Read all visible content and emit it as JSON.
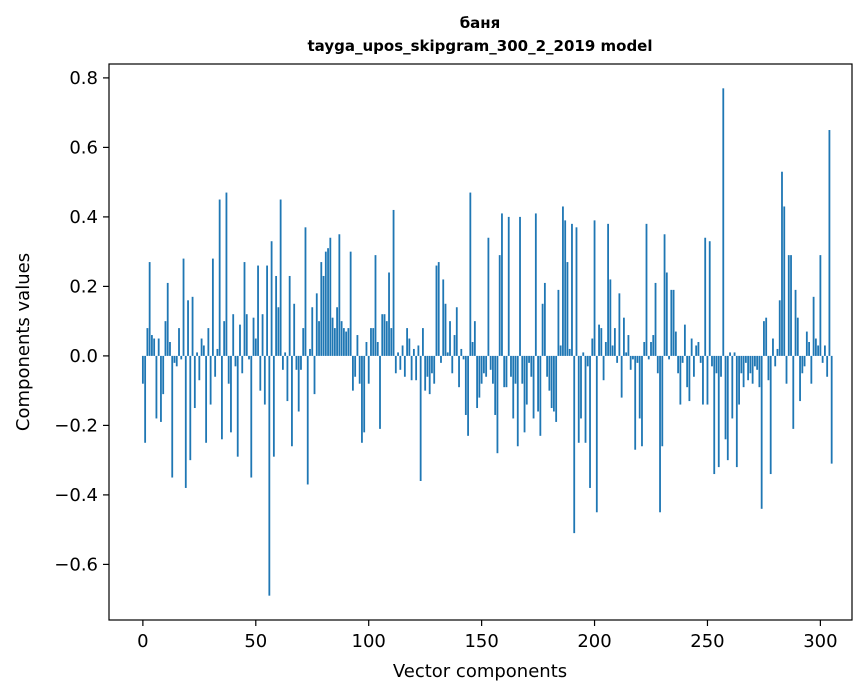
{
  "chart_data": {
    "type": "bar",
    "title": "баня",
    "subtitle": "tayga_upos_skipgram_300_2_2019 model",
    "xlabel": "Vector components",
    "ylabel": "Components values",
    "xlim": [
      -15,
      314
    ],
    "ylim": [
      -0.76,
      0.84
    ],
    "xticks": [
      0,
      50,
      100,
      150,
      200,
      250,
      300
    ],
    "xtick_labels": [
      "0",
      "50",
      "100",
      "150",
      "200",
      "250",
      "300"
    ],
    "yticks": [
      -0.6,
      -0.4,
      -0.2,
      0.0,
      0.2,
      0.4,
      0.6,
      0.8
    ],
    "ytick_labels": [
      "−0.6",
      "−0.4",
      "−0.2",
      "0.0",
      "0.2",
      "0.4",
      "0.6",
      "0.8"
    ],
    "bar_color": "#1f77b4",
    "values": [
      -0.08,
      -0.25,
      0.08,
      0.27,
      0.06,
      0.05,
      -0.18,
      0.05,
      -0.19,
      -0.11,
      0.1,
      0.21,
      0.04,
      -0.35,
      -0.02,
      -0.03,
      0.08,
      -0.01,
      0.28,
      -0.38,
      0.16,
      -0.3,
      0.17,
      -0.15,
      0.01,
      -0.07,
      0.05,
      0.03,
      -0.25,
      0.08,
      -0.14,
      0.28,
      -0.06,
      0.02,
      0.45,
      -0.24,
      0.1,
      0.47,
      -0.08,
      -0.22,
      0.12,
      -0.03,
      -0.29,
      0.09,
      -0.05,
      0.27,
      0.12,
      -0.01,
      -0.35,
      0.11,
      0.05,
      0.26,
      -0.1,
      0.12,
      -0.14,
      0.26,
      -0.69,
      0.33,
      -0.29,
      0.23,
      0.14,
      0.45,
      -0.04,
      0.01,
      -0.13,
      0.23,
      -0.26,
      0.15,
      -0.04,
      -0.16,
      -0.04,
      0.08,
      0.37,
      -0.37,
      0.02,
      0.14,
      -0.11,
      0.18,
      0.1,
      0.27,
      0.23,
      0.3,
      0.31,
      0.34,
      0.11,
      0.08,
      0.14,
      0.35,
      0.1,
      0.08,
      0.07,
      0.08,
      0.3,
      -0.1,
      -0.06,
      0.06,
      -0.08,
      -0.25,
      -0.22,
      0.04,
      -0.08,
      0.08,
      0.08,
      0.29,
      0.04,
      -0.21,
      0.12,
      0.12,
      0.1,
      0.24,
      0.08,
      0.42,
      -0.05,
      0.01,
      -0.04,
      0.03,
      -0.06,
      0.08,
      0.05,
      -0.07,
      0.02,
      -0.07,
      0.03,
      -0.36,
      0.08,
      -0.1,
      -0.06,
      -0.11,
      -0.05,
      -0.08,
      0.26,
      0.27,
      -0.02,
      0.22,
      0.15,
      0.01,
      0.1,
      -0.05,
      0.06,
      0.14,
      -0.09,
      0.02,
      -0.01,
      -0.17,
      -0.23,
      0.47,
      0.04,
      0.1,
      -0.15,
      -0.12,
      -0.08,
      -0.05,
      -0.06,
      0.34,
      -0.04,
      -0.08,
      -0.17,
      -0.28,
      0.29,
      0.41,
      -0.09,
      -0.09,
      0.4,
      -0.06,
      -0.18,
      -0.08,
      -0.26,
      0.4,
      -0.08,
      -0.22,
      -0.14,
      -0.02,
      -0.06,
      -0.18,
      0.41,
      -0.16,
      -0.23,
      0.15,
      0.21,
      -0.06,
      -0.1,
      -0.15,
      -0.16,
      -0.19,
      0.19,
      0.03,
      0.43,
      0.39,
      0.27,
      0.02,
      0.38,
      -0.51,
      0.37,
      -0.25,
      -0.18,
      0.01,
      -0.25,
      -0.03,
      -0.38,
      0.05,
      0.39,
      -0.45,
      0.09,
      0.08,
      -0.07,
      0.04,
      0.38,
      0.22,
      0.03,
      0.08,
      -0.02,
      0.18,
      -0.12,
      0.11,
      0.01,
      0.06,
      -0.04,
      -0.01,
      -0.27,
      -0.02,
      -0.18,
      -0.26,
      0.04,
      0.38,
      -0.01,
      0.04,
      0.06,
      0.21,
      -0.05,
      -0.45,
      -0.26,
      0.35,
      0.24,
      -0.01,
      0.19,
      0.19,
      0.07,
      -0.05,
      -0.14,
      -0.02,
      0.09,
      -0.09,
      -0.13,
      0.05,
      -0.06,
      0.03,
      0.04,
      -0.02,
      -0.14,
      0.34,
      -0.14,
      0.33,
      -0.03,
      -0.34,
      -0.05,
      -0.32,
      -0.06,
      0.77,
      -0.24,
      -0.3,
      0.01,
      -0.18,
      0.01,
      -0.32,
      -0.14,
      -0.05,
      -0.09,
      -0.02,
      -0.07,
      -0.05,
      -0.08,
      -0.03,
      -0.04,
      -0.09,
      -0.44,
      0.1,
      0.11,
      -0.07,
      -0.34,
      0.05,
      -0.03,
      0.02,
      0.16,
      0.53,
      0.43,
      -0.08,
      0.29,
      0.29,
      -0.21,
      0.19,
      0.11,
      -0.13,
      -0.05,
      -0.03,
      0.07,
      0.04,
      -0.08,
      0.17,
      0.05,
      0.03,
      0.29,
      -0.02,
      0.03,
      -0.06,
      0.65,
      -0.31
    ]
  }
}
